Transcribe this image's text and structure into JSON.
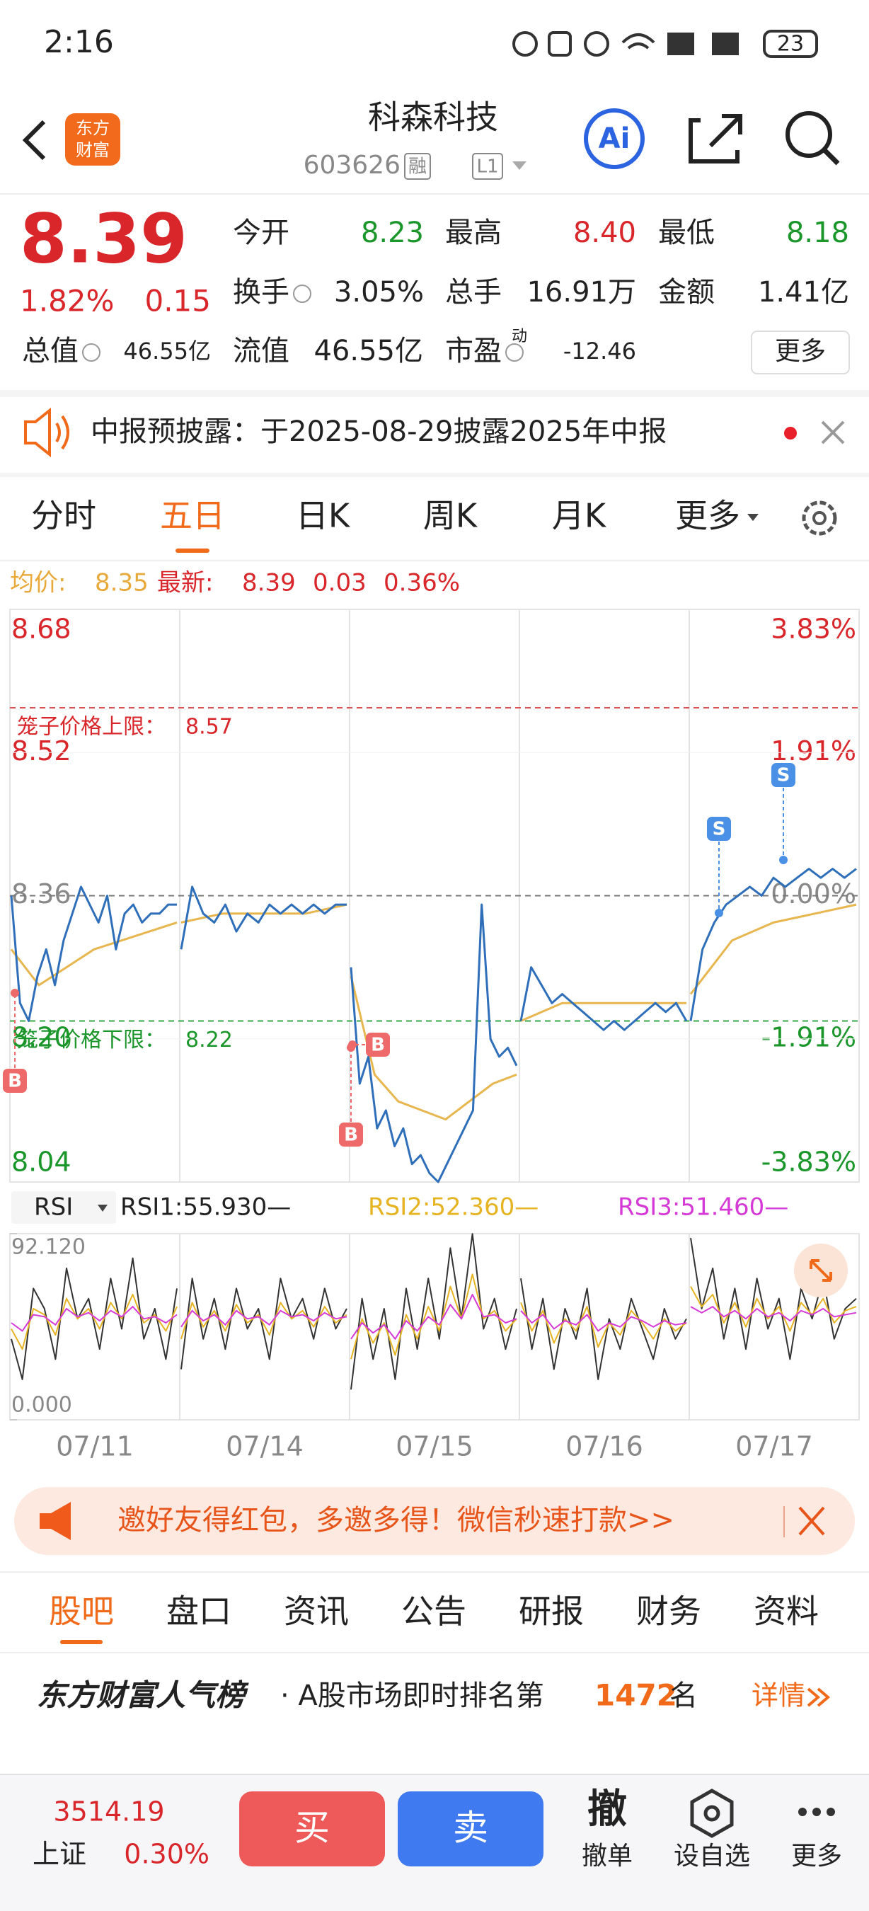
{
  "status_bar": {
    "time": "2:16",
    "battery": "23"
  },
  "header": {
    "logo": [
      "东方",
      "财富"
    ],
    "title": "科森科技",
    "code": "603626",
    "tags": [
      "融",
      "L1"
    ],
    "ai": "Ai"
  },
  "quote": {
    "price": "8.39",
    "change_pct": "1.82%",
    "change": "0.15",
    "fields": [
      {
        "label": "今开",
        "value": "8.23"
      },
      {
        "label": "最高",
        "value": "8.40"
      },
      {
        "label": "最低",
        "value": "8.18"
      },
      {
        "label": "换手",
        "value": "3.05%"
      },
      {
        "label": "总手",
        "value": "16.91万"
      },
      {
        "label": "金额",
        "value": "1.41亿"
      },
      {
        "label": "总值",
        "value": "46.55亿"
      },
      {
        "label": "流值",
        "value": "46.55亿"
      },
      {
        "label": "市盈",
        "sup": "动",
        "value": "-12.46"
      }
    ],
    "more": "更多"
  },
  "notice": {
    "text": "中报预披露：于2025-08-29披露2025年中报"
  },
  "tabs": {
    "items": [
      "分时",
      "五日",
      "日K",
      "周K",
      "月K",
      "更多"
    ],
    "active": 1
  },
  "info": {
    "avg_label": "均价:",
    "avg": "8.35",
    "last_label": "最新:",
    "last": "8.39",
    "change": "0.03",
    "change_pct": "0.36%"
  },
  "chart_data": {
    "type": "line",
    "ylim": [
      8.04,
      8.68
    ],
    "yticks": [
      {
        "value": 8.68,
        "label": "8.68",
        "pct": "3.83%"
      },
      {
        "value": 8.52,
        "label": "8.52",
        "pct": "1.91%"
      },
      {
        "value": 8.36,
        "label": "8.36",
        "pct": "0.00%"
      },
      {
        "value": 8.2,
        "label": "8.20",
        "pct": "-1.91%"
      },
      {
        "value": 8.04,
        "label": "8.04",
        "pct": "-3.83%"
      }
    ],
    "prev_close": 8.36,
    "ceiling": {
      "label": "笼子价格上限：",
      "value": 8.57
    },
    "floor": {
      "label": "笼子价格下限：",
      "value": 8.22
    },
    "trade_marks": [
      "B",
      "B",
      "B",
      "S",
      "S"
    ],
    "price_color": "#2f6fba",
    "avg_color": "#e8b64e",
    "days": [
      {
        "date": "07/11",
        "price": [
          8.36,
          8.24,
          8.22,
          8.27,
          8.3,
          8.26,
          8.31,
          8.34,
          8.37,
          8.35,
          8.33,
          8.36,
          8.3,
          8.34,
          8.35,
          8.33,
          8.34,
          8.34,
          8.35,
          8.35
        ],
        "avg": [
          8.3,
          8.26,
          8.28,
          8.3,
          8.31,
          8.32,
          8.33
        ],
        "rsi": [
          [
            40,
            20,
            65,
            55,
            30,
            75,
            50,
            60,
            35,
            70,
            45,
            80,
            40,
            55,
            30,
            65
          ],
          [
            45,
            35,
            55,
            52,
            42,
            60,
            50,
            55,
            45,
            58,
            50,
            62,
            48,
            52,
            44,
            56
          ],
          [
            48,
            44,
            52,
            51,
            47,
            55,
            51,
            53,
            49,
            54,
            51,
            56,
            50,
            51,
            48,
            52
          ]
        ]
      },
      {
        "date": "07/14",
        "price": [
          8.3,
          8.37,
          8.34,
          8.33,
          8.35,
          8.32,
          8.34,
          8.33,
          8.35,
          8.34,
          8.35,
          8.34,
          8.35,
          8.34,
          8.35,
          8.35
        ],
        "avg": [
          8.33,
          8.34,
          8.34,
          8.34,
          8.35
        ],
        "rsi": [
          [
            25,
            70,
            40,
            60,
            35,
            65,
            45,
            55,
            30,
            70,
            50,
            60,
            40,
            65,
            45,
            55
          ],
          [
            40,
            58,
            46,
            54,
            44,
            57,
            48,
            52,
            42,
            58,
            50,
            54,
            46,
            56,
            48,
            52
          ],
          [
            46,
            54,
            49,
            52,
            47,
            54,
            50,
            51,
            47,
            54,
            51,
            52,
            49,
            53,
            50,
            51
          ]
        ]
      },
      {
        "date": "07/15",
        "price": [
          8.28,
          8.15,
          8.18,
          8.1,
          8.12,
          8.08,
          8.1,
          8.06,
          8.07,
          8.05,
          8.04,
          8.06,
          8.08,
          8.1,
          8.12,
          8.35,
          8.2,
          8.18,
          8.19,
          8.17
        ],
        "avg": [
          8.27,
          8.16,
          8.13,
          8.12,
          8.11,
          8.13,
          8.15,
          8.16
        ],
        "rsi": [
          [
            15,
            60,
            30,
            55,
            20,
            65,
            35,
            70,
            40,
            85,
            50,
            92,
            45,
            60,
            35,
            55
          ],
          [
            30,
            50,
            38,
            48,
            32,
            52,
            40,
            56,
            44,
            66,
            50,
            72,
            50,
            54,
            44,
            50
          ],
          [
            40,
            48,
            43,
            47,
            40,
            49,
            44,
            51,
            47,
            57,
            50,
            62,
            51,
            52,
            48,
            50
          ]
        ]
      },
      {
        "date": "07/16",
        "price": [
          8.22,
          8.28,
          8.26,
          8.24,
          8.25,
          8.24,
          8.23,
          8.22,
          8.21,
          8.22,
          8.21,
          8.22,
          8.23,
          8.24,
          8.23,
          8.24,
          8.22
        ],
        "avg": [
          8.22,
          8.24,
          8.24,
          8.24,
          8.24
        ],
        "rsi": [
          [
            70,
            35,
            60,
            25,
            55,
            40,
            65,
            20,
            50,
            35,
            60,
            45,
            30,
            55,
            40,
            50
          ],
          [
            58,
            44,
            54,
            38,
            50,
            44,
            56,
            36,
            48,
            42,
            54,
            48,
            40,
            50,
            44,
            48
          ],
          [
            54,
            48,
            52,
            45,
            49,
            47,
            52,
            44,
            48,
            46,
            51,
            49,
            46,
            49,
            47,
            48
          ]
        ]
      },
      {
        "date": "07/17",
        "price": [
          8.22,
          8.3,
          8.33,
          8.35,
          8.36,
          8.37,
          8.36,
          8.38,
          8.37,
          8.38,
          8.39,
          8.38,
          8.39,
          8.38,
          8.39
        ],
        "avg": [
          8.25,
          8.31,
          8.33,
          8.34,
          8.35
        ],
        "rsi": [
          [
            90,
            55,
            75,
            40,
            65,
            35,
            70,
            45,
            60,
            30,
            65,
            50,
            70,
            40,
            55,
            60
          ],
          [
            66,
            56,
            62,
            48,
            58,
            46,
            60,
            50,
            56,
            44,
            58,
            52,
            60,
            48,
            54,
            56
          ],
          [
            56,
            53,
            56,
            51,
            54,
            50,
            55,
            51,
            53,
            49,
            54,
            52,
            55,
            51,
            52,
            53
          ]
        ]
      }
    ],
    "rsi": {
      "selector": "RSI",
      "series": [
        {
          "name": "RSI1:55.930—",
          "color": "#333333"
        },
        {
          "name": "RSI2:52.360—",
          "color": "#e6b422"
        },
        {
          "name": "RSI3:51.460—",
          "color": "#d63ad6"
        }
      ],
      "ylim": [
        0,
        92.12
      ],
      "yticks": [
        {
          "value": 92.12,
          "label": "92.120"
        },
        {
          "value": 0,
          "label": "0.000"
        }
      ]
    }
  },
  "banner": {
    "text": "邀好友得红包，多邀多得！微信秒速打款>>"
  },
  "tabs2": {
    "items": [
      "股吧",
      "盘口",
      "资讯",
      "公告",
      "研报",
      "财务",
      "资料"
    ],
    "active": 0
  },
  "popularity": {
    "title": "东方财富人气榜",
    "prefix": "· A股市场即时排名第",
    "rank": "1472",
    "suffix": "名",
    "link": "详情"
  },
  "bottom": {
    "index_value": "3514.19",
    "index_name": "上证",
    "index_pct": "0.30%",
    "buy": "买",
    "sell": "卖",
    "cancel_icon": "撤",
    "cancel": "撤单",
    "watch": "设自选",
    "more": "更多"
  }
}
